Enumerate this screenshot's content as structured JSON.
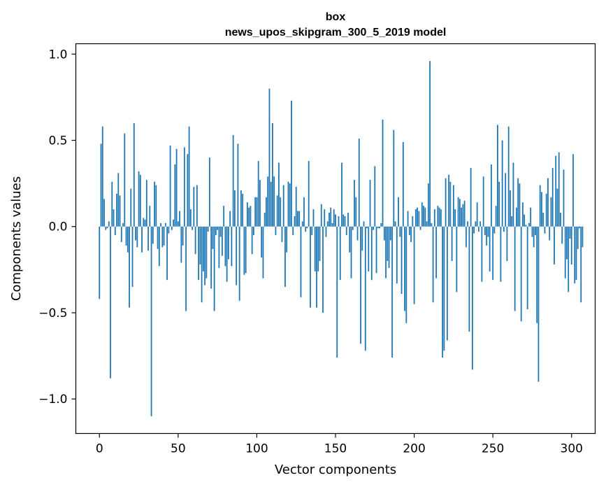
{
  "chart_data": {
    "type": "bar",
    "title": "box",
    "subtitle": "news_upos_skipgram_300_5_2019 model",
    "xlabel": "Vector components",
    "ylabel": "Components values",
    "xlim": [
      -15,
      315
    ],
    "ylim": [
      -1.2,
      1.06
    ],
    "xticks": [
      0,
      50,
      100,
      150,
      200,
      250,
      300
    ],
    "xtick_labels": [
      "0",
      "50",
      "100",
      "150",
      "200",
      "250",
      "300"
    ],
    "yticks": [
      1.0,
      0.5,
      0.0,
      -0.5,
      -1.0
    ],
    "ytick_labels": [
      "1.0",
      "0.5",
      "0.0",
      "−0.5",
      "−1.0"
    ],
    "bar_color": "#1f77b4",
    "grid": false,
    "values": [
      -0.42,
      0.48,
      0.58,
      0.16,
      -0.02,
      -0.01,
      0.03,
      -0.88,
      0.26,
      0.1,
      -0.05,
      0.19,
      0.31,
      0.18,
      -0.09,
      0.02,
      0.54,
      -0.11,
      -0.15,
      -0.47,
      0.22,
      -0.35,
      0.6,
      -0.08,
      -0.12,
      0.32,
      0.3,
      -0.15,
      0.05,
      0.04,
      0.27,
      -0.14,
      0.12,
      -1.1,
      -0.1,
      0.26,
      0.24,
      -0.13,
      -0.23,
      0.02,
      -0.12,
      -0.11,
      0.02,
      -0.31,
      -0.04,
      0.47,
      -0.02,
      0.04,
      0.36,
      0.45,
      0.03,
      0.09,
      -0.21,
      -0.11,
      0.46,
      -0.49,
      0.42,
      0.58,
      0.1,
      -0.02,
      0.23,
      -0.16,
      0.24,
      -0.31,
      -0.22,
      -0.44,
      -0.26,
      -0.34,
      -0.3,
      -0.03,
      0.4,
      -0.36,
      -0.13,
      -0.49,
      -0.05,
      -0.02,
      -0.24,
      -0.06,
      -0.17,
      0.12,
      -0.23,
      -0.32,
      -0.19,
      0.09,
      -0.23,
      0.53,
      0.21,
      -0.34,
      0.48,
      -0.43,
      0.21,
      0.19,
      -0.28,
      -0.27,
      0.14,
      0.11,
      0.12,
      -0.16,
      -0.05,
      0.17,
      0.17,
      0.38,
      0.27,
      -0.18,
      -0.3,
      0.08,
      0.17,
      0.29,
      0.8,
      0.26,
      0.6,
      0.29,
      -0.05,
      0.18,
      0.37,
      0.17,
      -0.09,
      0.24,
      -0.35,
      -0.15,
      0.26,
      0.25,
      0.73,
      -0.05,
      0.06,
      0.23,
      0.09,
      0.09,
      -0.41,
      0.03,
      0.17,
      -0.03,
      -0.01,
      0.38,
      -0.47,
      -0.05,
      0.1,
      -0.26,
      -0.47,
      -0.26,
      -0.2,
      0.13,
      -0.5,
      0.1,
      -0.06,
      0.03,
      0.08,
      0.11,
      0.02,
      0.1,
      0.07,
      -0.76,
      0.06,
      -0.31,
      0.37,
      0.07,
      0.06,
      -0.05,
      0.08,
      -0.15,
      -0.3,
      -0.02,
      0.27,
      0.17,
      -0.08,
      0.51,
      -0.68,
      -0.14,
      0.03,
      -0.72,
      -0.01,
      -0.26,
      0.27,
      -0.31,
      -0.02,
      0.35,
      -0.27,
      -0.01,
      -0.01,
      0.02,
      0.62,
      -0.08,
      -0.3,
      -0.2,
      -0.24,
      -0.08,
      -0.76,
      0.56,
      0.03,
      -0.33,
      0.17,
      -0.06,
      -0.39,
      0.49,
      -0.49,
      -0.56,
      0.09,
      -0.05,
      -0.09,
      0.06,
      -0.45,
      0.1,
      0.11,
      0.09,
      -0.02,
      0.14,
      0.12,
      0.11,
      0.03,
      0.25,
      0.96,
      0.02,
      -0.44,
      0.1,
      -0.3,
      0.12,
      0.11,
      0.1,
      -0.76,
      -0.72,
      0.28,
      -0.66,
      0.3,
      0.26,
      -0.2,
      0.24,
      0.1,
      -0.38,
      0.17,
      0.16,
      0.11,
      0.13,
      0.15,
      -0.12,
      0.03,
      -0.61,
      0.34,
      -0.83,
      -0.04,
      0.03,
      0.14,
      -0.03,
      0.03,
      -0.32,
      0.29,
      -0.05,
      -0.11,
      -0.06,
      -0.26,
      0.36,
      -0.31,
      -0.04,
      0.12,
      0.59,
      0.26,
      -0.32,
      0.5,
      -0.03,
      0.31,
      -0.2,
      0.58,
      0.21,
      0.06,
      0.37,
      -0.49,
      0.11,
      0.28,
      0.25,
      -0.55,
      0.14,
      0.07,
      0.01,
      -0.48,
      0.02,
      0.11,
      -0.06,
      -0.12,
      -0.05,
      -0.56,
      -0.9,
      0.24,
      0.2,
      0.08,
      -0.04,
      0.19,
      0.28,
      -0.08,
      0.17,
      0.34,
      -0.22,
      0.41,
      0.22,
      0.43,
      0.08,
      -0.1,
      0.33,
      -0.3,
      -0.19,
      -0.38,
      -0.07,
      -0.22,
      0.42,
      -0.33,
      -0.31,
      -0.13,
      -0.01,
      -0.44,
      -0.12
    ]
  }
}
